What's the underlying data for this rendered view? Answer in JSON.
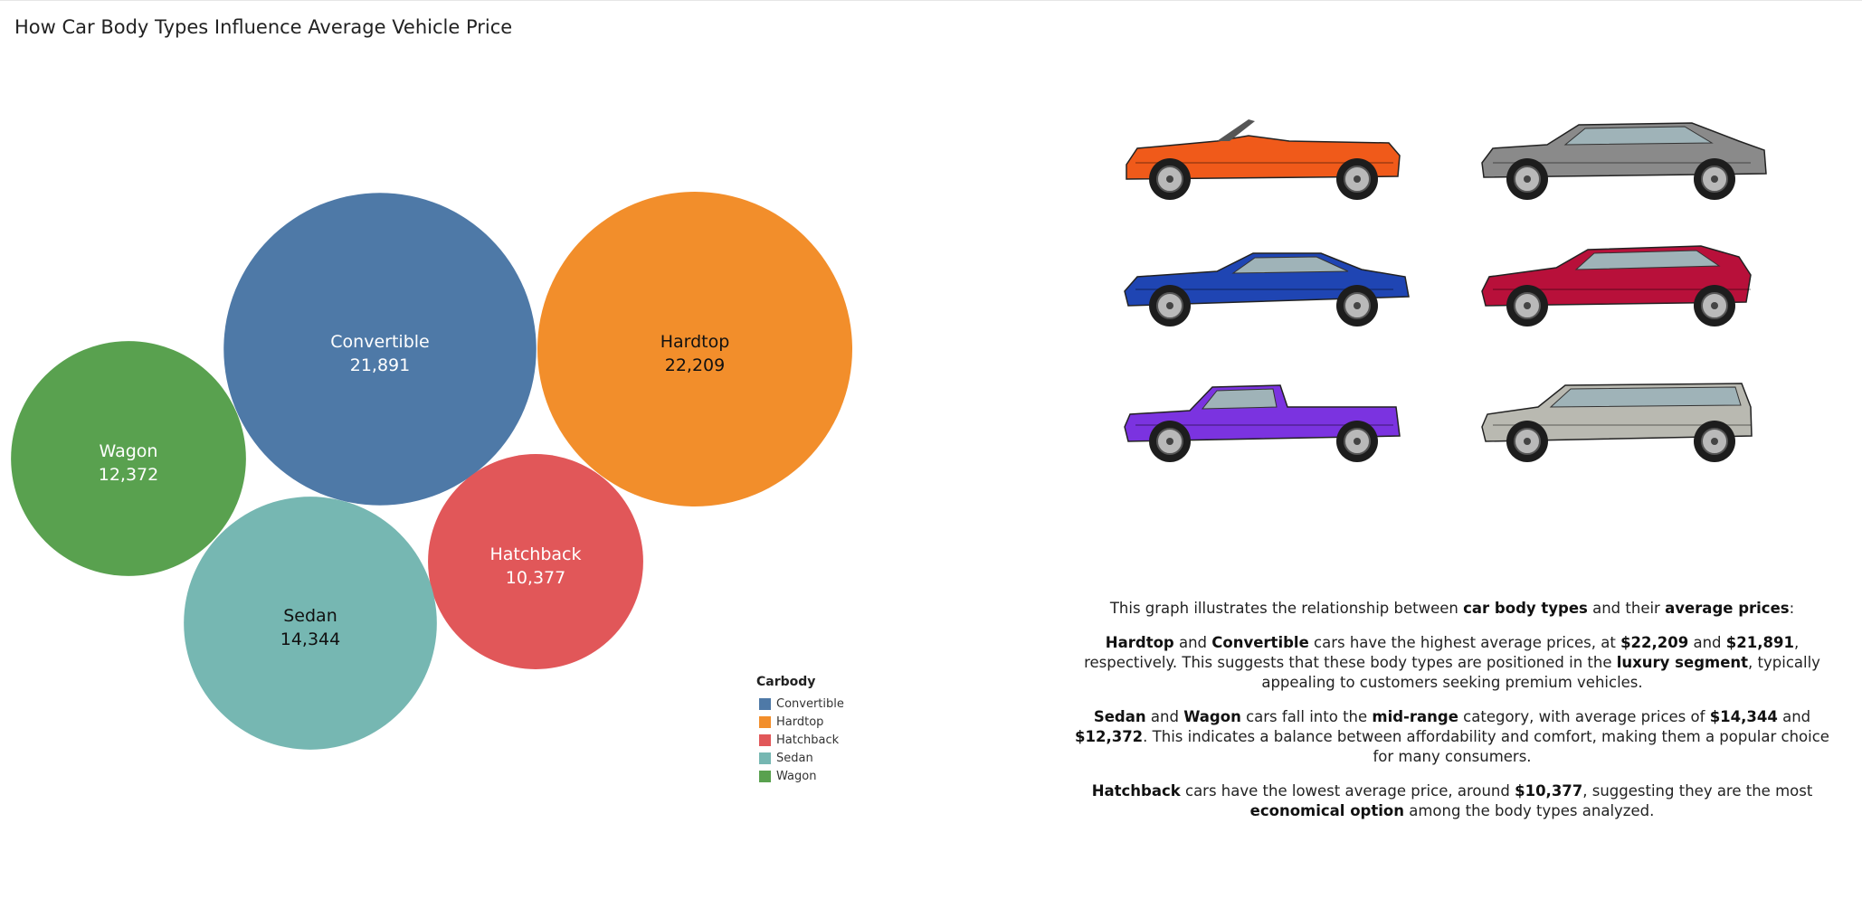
{
  "title": "How Car Body Types Influence Average Vehicle Price",
  "chart_data": {
    "type": "bubble",
    "title": "How Car Body Types Influence Average Vehicle Price",
    "categories": [
      "Convertible",
      "Hardtop",
      "Hatchback",
      "Sedan",
      "Wagon"
    ],
    "values": [
      21891,
      22209,
      10377,
      14344,
      12372
    ],
    "value_labels": [
      "21,891",
      "22,209",
      "10,377",
      "14,344",
      "12,372"
    ],
    "colors": {
      "Convertible": "#4e79a7",
      "Hardtop": "#f28e2b",
      "Hatchback": "#e15759",
      "Sedan": "#76b7b2",
      "Wagon": "#59a14f"
    },
    "label_colors": {
      "Convertible": "#ffffff",
      "Hardtop": "#111111",
      "Hatchback": "#ffffff",
      "Sedan": "#111111",
      "Wagon": "#ffffff"
    },
    "legend": {
      "title": "Carbody",
      "items": [
        "Convertible",
        "Hardtop",
        "Hatchback",
        "Sedan",
        "Wagon"
      ],
      "placement": "bottom-right"
    }
  },
  "description": {
    "intro": [
      {
        "t": "This graph illustrates the relationship between "
      },
      {
        "t": "car body types",
        "b": true
      },
      {
        "t": " and their "
      },
      {
        "t": "average prices",
        "b": true
      },
      {
        "t": ":"
      }
    ],
    "paragraphs": [
      [
        {
          "t": "Hardtop",
          "b": true
        },
        {
          "t": " and "
        },
        {
          "t": "Convertible",
          "b": true
        },
        {
          "t": " cars have the highest average prices, at "
        },
        {
          "t": "$22,209",
          "b": true
        },
        {
          "t": " and "
        },
        {
          "t": "$21,891",
          "b": true
        },
        {
          "t": ", respectively. This suggests that these body types are positioned in the "
        },
        {
          "t": "luxury segment",
          "b": true
        },
        {
          "t": ", typically appealing to customers seeking premium vehicles."
        }
      ],
      [
        {
          "t": "Sedan",
          "b": true
        },
        {
          "t": " and "
        },
        {
          "t": "Wagon",
          "b": true
        },
        {
          "t": " cars fall into the "
        },
        {
          "t": "mid-range",
          "b": true
        },
        {
          "t": " category, with average prices of "
        },
        {
          "t": "$14,344",
          "b": true
        },
        {
          "t": " and "
        },
        {
          "t": "$12,372",
          "b": true
        },
        {
          "t": ". This indicates a balance between affordability and comfort, making them a popular choice for many consumers."
        }
      ],
      [
        {
          "t": "Hatchback",
          "b": true
        },
        {
          "t": " cars have the lowest average price, around "
        },
        {
          "t": "$10,377",
          "b": true
        },
        {
          "t": ", suggesting they are the most "
        },
        {
          "t": "economical option",
          "b": true
        },
        {
          "t": " among the body types analyzed."
        }
      ]
    ]
  },
  "car_images": [
    {
      "name": "convertible",
      "color": "#f05a1a"
    },
    {
      "name": "sedan",
      "color": "#8a8a8a"
    },
    {
      "name": "coupe",
      "color": "#1f45b3"
    },
    {
      "name": "hatchback",
      "color": "#b8103a"
    },
    {
      "name": "pickup",
      "color": "#7b33e0"
    },
    {
      "name": "wagon",
      "color": "#b9b9b1"
    }
  ]
}
